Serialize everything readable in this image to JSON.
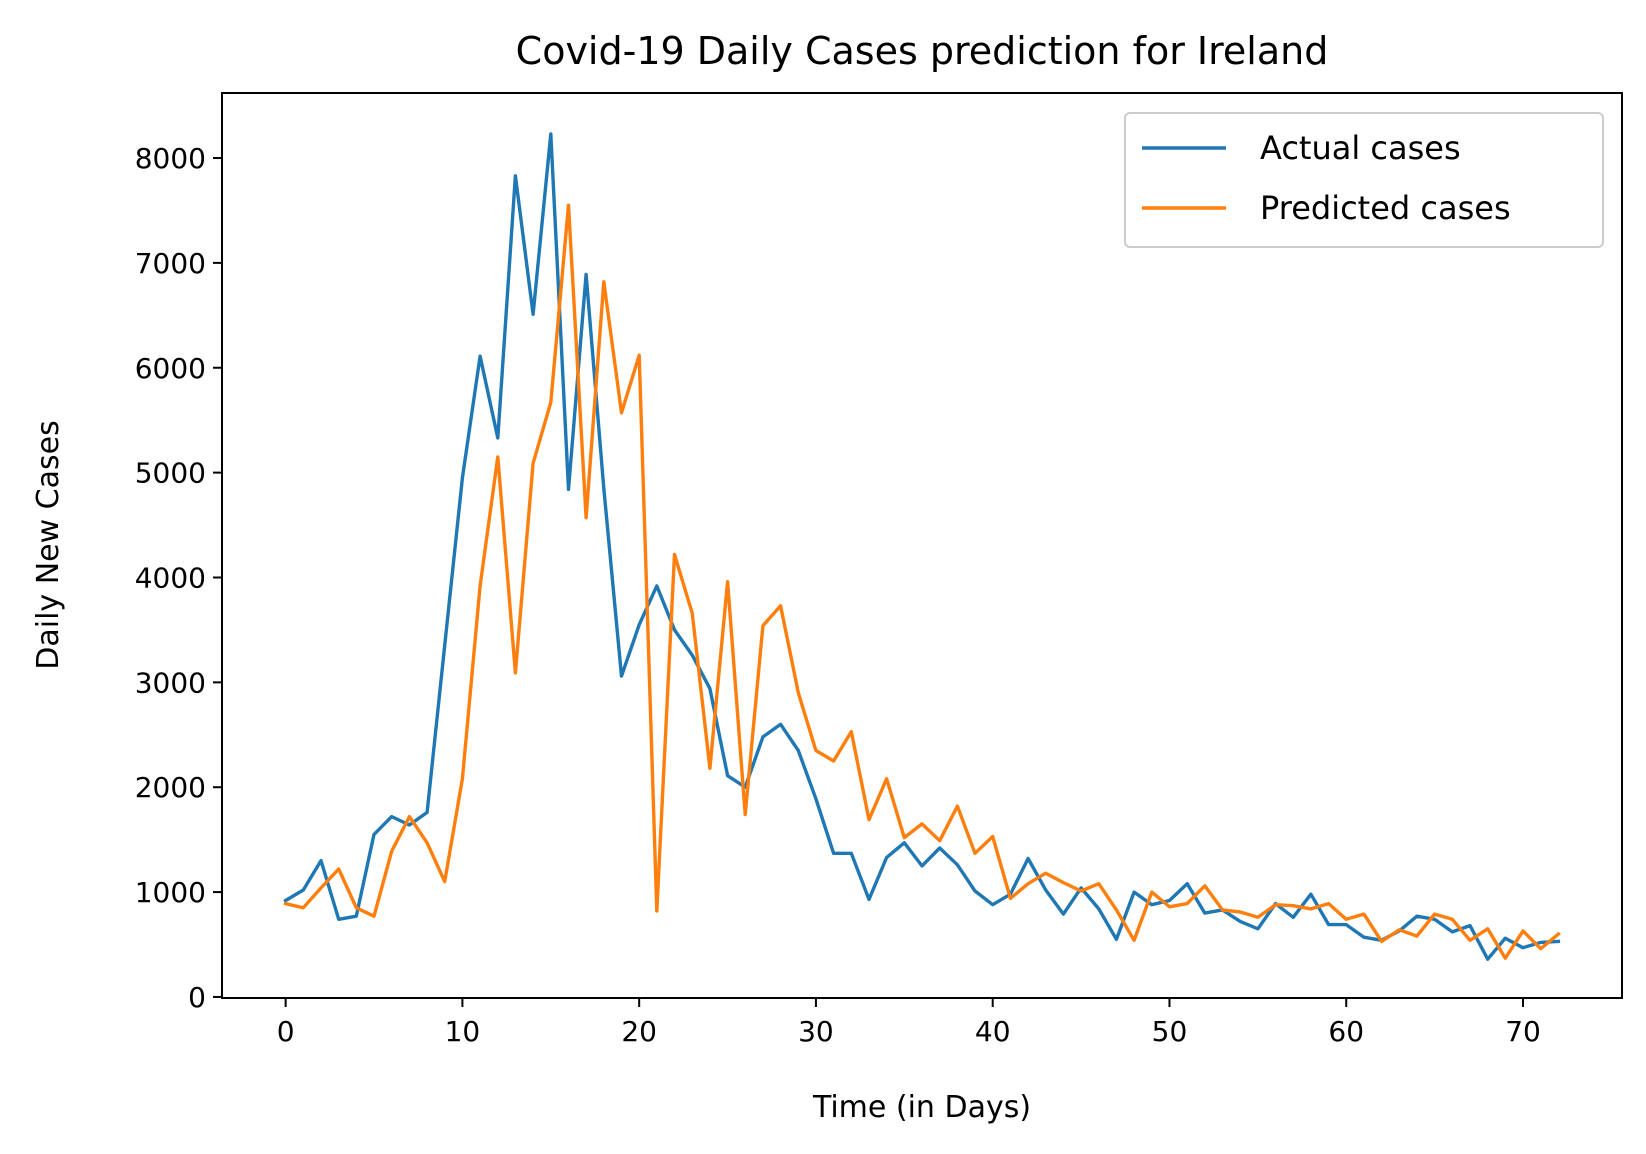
{
  "chart_data": {
    "type": "line",
    "title": "Covid-19 Daily Cases prediction for Ireland",
    "xlabel": "Time (in Days)",
    "ylabel": "Daily New Cases",
    "xlim": [
      -3.6,
      75.6
    ],
    "ylim": [
      -10,
      8620
    ],
    "xticks": [
      0,
      10,
      20,
      30,
      40,
      50,
      60,
      70
    ],
    "yticks": [
      0,
      1000,
      2000,
      3000,
      4000,
      5000,
      6000,
      7000,
      8000
    ],
    "grid": false,
    "legend_position": "top-right",
    "x": [
      0,
      1,
      2,
      3,
      4,
      5,
      6,
      7,
      8,
      9,
      10,
      11,
      12,
      13,
      14,
      15,
      16,
      17,
      18,
      19,
      20,
      21,
      22,
      23,
      24,
      25,
      26,
      27,
      28,
      29,
      30,
      31,
      32,
      33,
      34,
      35,
      36,
      37,
      38,
      39,
      40,
      41,
      42,
      43,
      44,
      45,
      46,
      47,
      48,
      49,
      50,
      51,
      52,
      53,
      54,
      55,
      56,
      57,
      58,
      59,
      60,
      61,
      62,
      63,
      64,
      65,
      66,
      67,
      68,
      69,
      70,
      71,
      72
    ],
    "series": [
      {
        "name": "Actual cases",
        "color": "#1f77b4",
        "values": [
          920,
          1020,
          1300,
          740,
          770,
          1550,
          1720,
          1640,
          1760,
          3350,
          4950,
          6110,
          5330,
          7830,
          6510,
          8230,
          4840,
          6890,
          4850,
          3060,
          3550,
          3920,
          3500,
          3260,
          2940,
          2110,
          2000,
          2480,
          2600,
          2350,
          1890,
          1370,
          1370,
          930,
          1330,
          1470,
          1250,
          1420,
          1260,
          1010,
          880,
          980,
          1320,
          1020,
          790,
          1040,
          840,
          550,
          1000,
          880,
          920,
          1080,
          800,
          830,
          720,
          650,
          890,
          760,
          980,
          690,
          690,
          570,
          540,
          630,
          770,
          740,
          620,
          680,
          360,
          560,
          470,
          520,
          530
        ]
      },
      {
        "name": "Predicted cases",
        "color": "#ff7f0e",
        "values": [
          890,
          850,
          1040,
          1220,
          850,
          770,
          1390,
          1720,
          1470,
          1100,
          2080,
          3920,
          5150,
          3090,
          5090,
          5670,
          7550,
          4570,
          6820,
          5570,
          6120,
          820,
          4220,
          3660,
          2180,
          3960,
          1740,
          3540,
          3730,
          2900,
          2350,
          2250,
          2530,
          1690,
          2080,
          1520,
          1650,
          1490,
          1820,
          1370,
          1530,
          940,
          1080,
          1180,
          1090,
          1010,
          1080,
          830,
          540,
          1000,
          860,
          890,
          1060,
          830,
          810,
          760,
          880,
          870,
          840,
          890,
          740,
          790,
          530,
          640,
          580,
          790,
          740,
          540,
          650,
          370,
          630,
          460,
          600
        ]
      }
    ]
  }
}
